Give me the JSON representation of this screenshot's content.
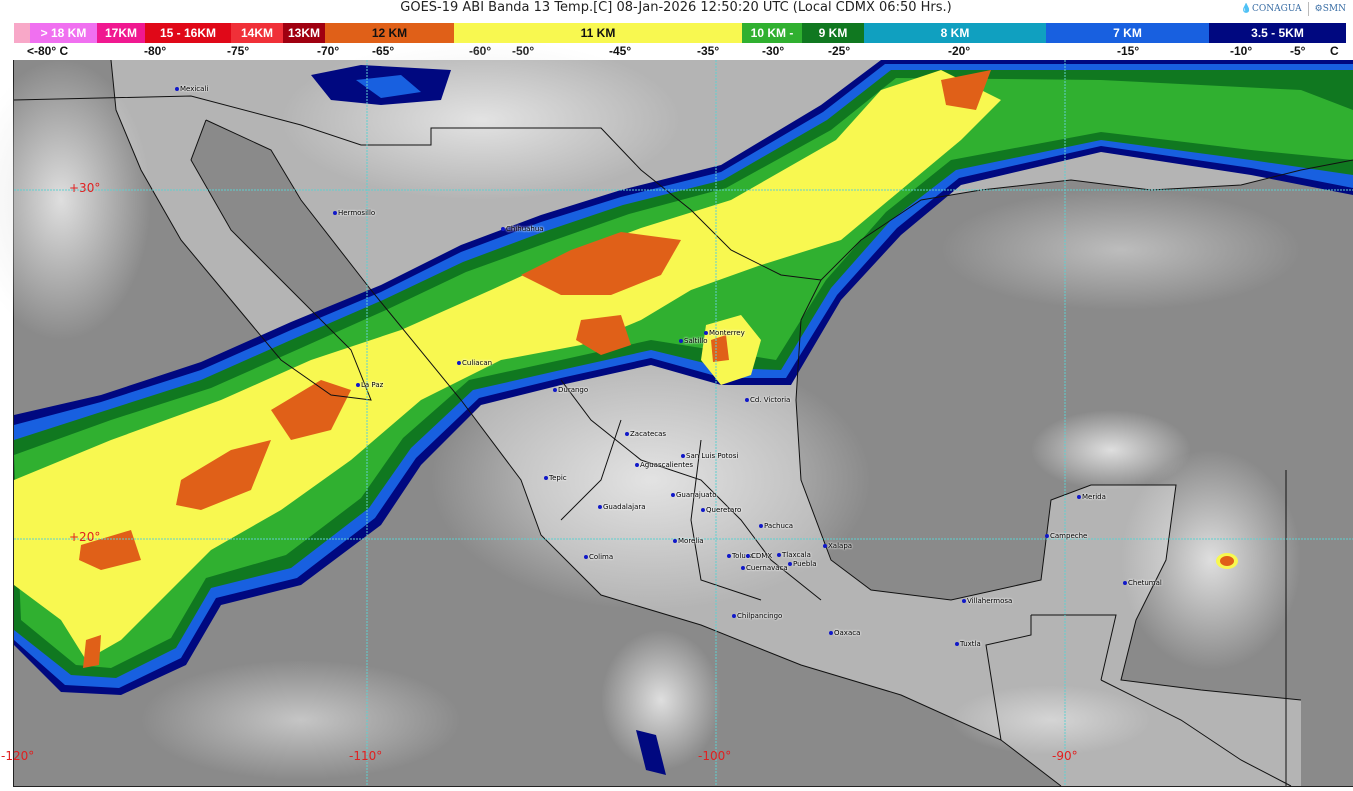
{
  "header": {
    "title": "GOES-19 ABI Banda 13 Temp.[C] 08-Jan-2026 12:50:20 UTC (Local CDMX  06:50 Hrs.)",
    "logos": [
      "CONAGUA",
      "SMN"
    ]
  },
  "legend": {
    "segments": [
      {
        "label": "> 18 KM",
        "color": "#f070f0"
      },
      {
        "label": "17KM",
        "color": "#f01890"
      },
      {
        "label": "15 - 16KM",
        "color": "#e00818"
      },
      {
        "label": "14KM",
        "color": "#f03038"
      },
      {
        "label": "13KM",
        "color": "#a00010"
      },
      {
        "label": "12 KM",
        "color": "#e06018"
      },
      {
        "label": "11 KM",
        "color": "#f8f850"
      },
      {
        "label": "10 KM -",
        "color": "#30b030"
      },
      {
        "label": "9 KM",
        "color": "#107820"
      },
      {
        "label": "8 KM",
        "color": "#10a0c0"
      },
      {
        "label": "7 KM",
        "color": "#1860e0"
      },
      {
        "label": "3.5 - 5KM",
        "color": "#000880"
      }
    ],
    "temps": [
      "<-80° C",
      "-80°",
      "-75°",
      "-70°",
      "-65°",
      "-60°",
      "-50°",
      "-45°",
      "-35°",
      "-30°",
      "-25°",
      "-20°",
      "-15°",
      "-10°",
      "-5°",
      "C"
    ]
  },
  "map": {
    "latitude_labels": [
      "+30°",
      "+20°"
    ],
    "longitude_labels": [
      "-120°",
      "-110°",
      "-100°",
      "-90°"
    ],
    "cities": [
      "Mexicali",
      "Hermosillo",
      "Chihuahua",
      "Culiacan",
      "La Paz",
      "Durango",
      "Saltillo",
      "Monterrey",
      "Cd. Victoria",
      "Zacatecas",
      "San Luis Potosi",
      "Aguascalientes",
      "Tepic",
      "Guanajuato",
      "Guadalajara",
      "Queretaro",
      "Pachuca",
      "Morelia",
      "Xalapa",
      "Colima",
      "Toluca",
      "CDMX",
      "Tlaxcala",
      "Puebla",
      "Cuernavaca",
      "Chilpancingo",
      "Oaxaca",
      "Villahermosa",
      "Tuxtla",
      "Merida",
      "Campeche",
      "Chetumal"
    ]
  }
}
